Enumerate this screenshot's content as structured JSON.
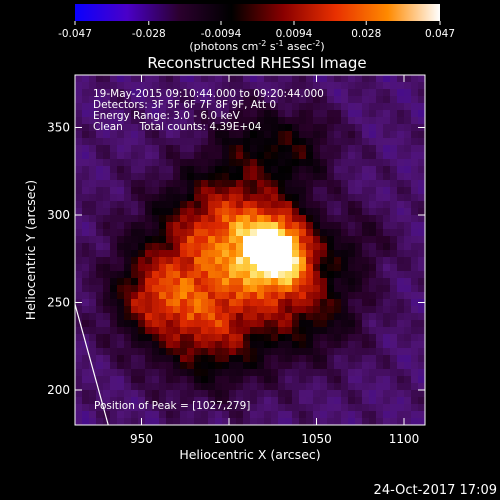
{
  "colorbar": {
    "ticks": [
      "-0.047",
      "-0.028",
      "-0.0094",
      "0.0094",
      "0.028",
      "0.047"
    ],
    "unit_label_parts": [
      "(photons cm",
      "-2",
      " s",
      "-1",
      " asec",
      "-2",
      ")"
    ],
    "range": [
      -0.047,
      0.047
    ],
    "colors": [
      "#0a00ff",
      "#4a00c8",
      "#2b002e",
      "#000000",
      "#8a0000",
      "#e83000",
      "#ff8a00",
      "#ffffff"
    ]
  },
  "chart_data": {
    "type": "heatmap",
    "title": "Reconstructed RHESSI Image",
    "xlabel": "Heliocentric X (arcsec)",
    "ylabel": "Heliocentric Y (arcsec)",
    "xlim": [
      912,
      1112
    ],
    "ylim": [
      180,
      380
    ],
    "xticks": [
      950,
      1000,
      1050,
      1100
    ],
    "yticks": [
      200,
      250,
      300,
      350
    ],
    "info_lines": [
      "19-May-2015 09:10:44.000 to 09:20:44.000",
      "Detectors: 3F 5F 6F 7F 8F 9F, Att 0",
      "Energy Range: 3.0 - 6.0 keV",
      "Clean     Total counts: 4.39E+04"
    ],
    "peak_text": "Position of Peak = [1027,279]",
    "peak": [
      1027,
      279
    ],
    "limb_line": [
      [
        912,
        249
      ],
      [
        931,
        180
      ]
    ],
    "footer_date": "24-Oct-2017 17:09"
  }
}
